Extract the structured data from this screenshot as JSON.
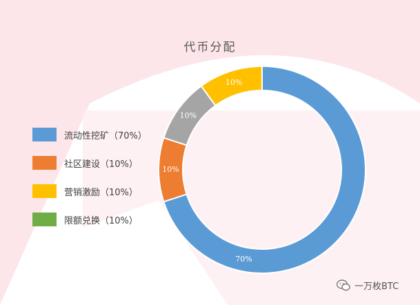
{
  "colors": {
    "background_shape": "#fde3e8",
    "blue": "#5b9bd5",
    "orange": "#ed7d31",
    "gray": "#a5a5a5",
    "yellow": "#ffc000",
    "green": "#70ad47"
  },
  "watermark": {
    "icon": "wechat-icon",
    "text": "一万枚BTC"
  },
  "chart_data": {
    "type": "pie",
    "title": "代币分配",
    "legend": [
      {
        "label": "流动性挖矿（70%）",
        "color": "#5b9bd5"
      },
      {
        "label": "社区建设（10%）",
        "color": "#ed7d31"
      },
      {
        "label": "营销激励（10%）",
        "color": "#ffc000"
      },
      {
        "label": "限额兑换（10%）",
        "color": "#70ad47"
      }
    ],
    "slices": [
      {
        "value": 70,
        "label": "70%",
        "color": "#5b9bd5"
      },
      {
        "value": 10,
        "label": "10%",
        "color": "#ed7d31"
      },
      {
        "value": 10,
        "label": "10%",
        "color": "#a5a5a5"
      },
      {
        "value": 10,
        "label": "10%",
        "color": "#ffc000"
      }
    ]
  }
}
